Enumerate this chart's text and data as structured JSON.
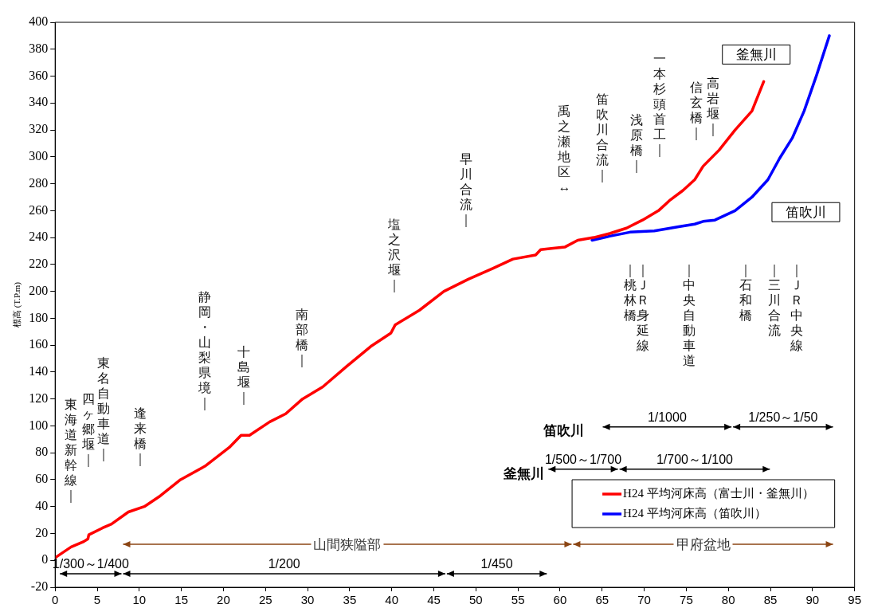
{
  "chart_data": {
    "type": "line",
    "ylabel": "標高 (T.P.m)",
    "xlim": [
      0,
      95
    ],
    "xticks": [
      0,
      5,
      10,
      15,
      20,
      25,
      30,
      35,
      40,
      45,
      50,
      55,
      60,
      65,
      70,
      75,
      80,
      85,
      90,
      95
    ],
    "ylim": [
      -20,
      400
    ],
    "yticks": [
      -20,
      0,
      20,
      40,
      60,
      80,
      100,
      120,
      140,
      160,
      180,
      200,
      220,
      240,
      260,
      280,
      300,
      320,
      340,
      360,
      380,
      400
    ],
    "grid": false,
    "legend": "bottom right",
    "series": [
      {
        "name": "H24 平均河床高（富士川・釜無川）",
        "color": "#ff0000",
        "x": [
          0,
          1.9,
          3.4,
          3.9,
          4.0,
          5.6,
          6.7,
          8.7,
          10.6,
          12.5,
          14.9,
          17.8,
          20.7,
          22.1,
          23.1,
          25.5,
          27.4,
          29.4,
          31.8,
          34.6,
          37.5,
          39.9,
          40.4,
          43.3,
          46.2,
          49.1,
          52,
          54.4,
          57.1,
          57.7,
          59.2,
          60.6,
          62.1,
          64,
          65.9,
          67.9,
          69.8,
          71.7,
          73.1,
          74.6,
          76,
          77,
          78.9,
          80.8,
          82.8,
          84.2
        ],
        "values": [
          2,
          10,
          14,
          16,
          19,
          24,
          27,
          36,
          40,
          48,
          60,
          70,
          84,
          93,
          93,
          103,
          109,
          120,
          129,
          144,
          159,
          169,
          175,
          186,
          200,
          209,
          217,
          224,
          227,
          231,
          232,
          233,
          238,
          240,
          243,
          247,
          253,
          260,
          268,
          275,
          283,
          293,
          305,
          320,
          334,
          356
        ]
      },
      {
        "name": "H24 平均河床高（笛吹川）",
        "color": "#0000ff",
        "x": [
          63.8,
          65.9,
          68.3,
          71.2,
          74.1,
          76,
          77,
          78.4,
          80.8,
          82.8,
          84.7,
          86.1,
          87.6,
          89,
          90.5,
          92
        ],
        "values": [
          238,
          241,
          244,
          245,
          248,
          250,
          252,
          253,
          260,
          270,
          283,
          299,
          314,
          334,
          361,
          390
        ]
      }
    ],
    "annotations": [
      "釜無川",
      "笛吹川",
      "釜無川",
      "笛吹川",
      "1/300～1/400",
      "1/200",
      "1/450",
      "山間狭隘部",
      "甲府盆地",
      "1/500～1/700",
      "1/700～1/100",
      "1/1000",
      "1/250～1/50",
      "東海道新幹線｜",
      "四ヶ郷堰｜",
      "東名自動車道｜",
      "逢来橋｜",
      "静岡・山梨県境｜",
      "十島堰｜",
      "南部橋｜",
      "塩之沢堰｜",
      "早川合流｜",
      "禹之瀬地区↔",
      "笛吹川合流｜",
      "浅原橋｜",
      "一本杉頭首工｜",
      "信玄橋｜",
      "高岩堰｜",
      "｜桃林橋",
      "｜ＪＲ身延線",
      "｜中央自動車道",
      "｜石和橋",
      "｜三川合流",
      "｜ＪＲ中央線"
    ]
  }
}
